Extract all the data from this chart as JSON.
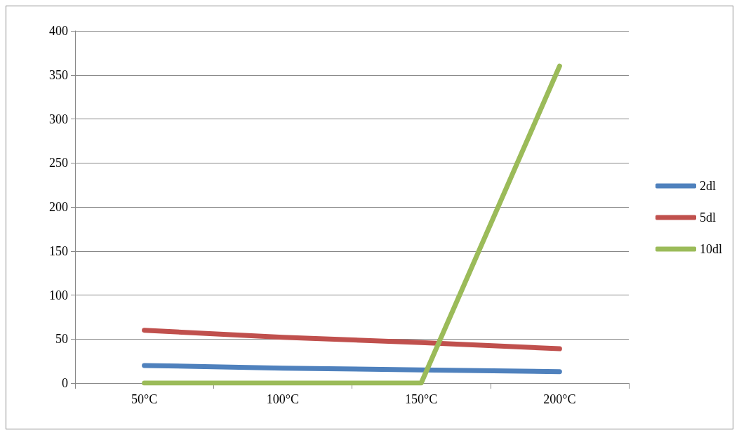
{
  "chart_data": {
    "type": "line",
    "categories": [
      "50°C",
      "100°C",
      "150°C",
      "200°C"
    ],
    "series": [
      {
        "name": "2dl",
        "color": "#4f81bd",
        "values": [
          20,
          17,
          15,
          13
        ]
      },
      {
        "name": "5dl",
        "color": "#c0504d",
        "values": [
          60,
          52,
          46,
          39
        ]
      },
      {
        "name": "10dl",
        "color": "#9bbb59",
        "values": [
          0,
          0,
          0,
          360
        ]
      }
    ],
    "ylim": [
      0,
      400
    ],
    "yticks": [
      0,
      50,
      100,
      150,
      200,
      250,
      300,
      350,
      400
    ],
    "grid": "y",
    "legend": "right",
    "marker": "none",
    "line_style": "solid"
  }
}
